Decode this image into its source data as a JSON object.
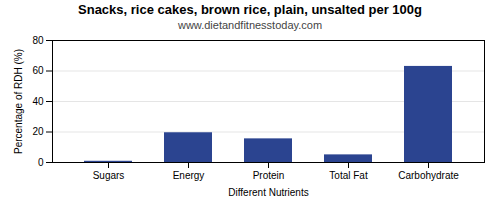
{
  "chart_data": {
    "type": "bar",
    "title": "Snacks, rice cakes, brown rice, plain, unsalted per 100g",
    "subtitle": "www.dietandfitnesstoday.com",
    "categories": [
      "Sugars",
      "Energy",
      "Protein",
      "Total Fat",
      "Carbohydrate"
    ],
    "values": [
      0.8,
      19.5,
      15.5,
      5.0,
      63.0
    ],
    "color": "#2b4490",
    "xlabel": "Different Nutrients",
    "ylabel": "Percentage of RDH (%)",
    "ylim": [
      0,
      80
    ],
    "yticks": [
      0,
      20,
      40,
      60,
      80
    ],
    "grid": true
  }
}
